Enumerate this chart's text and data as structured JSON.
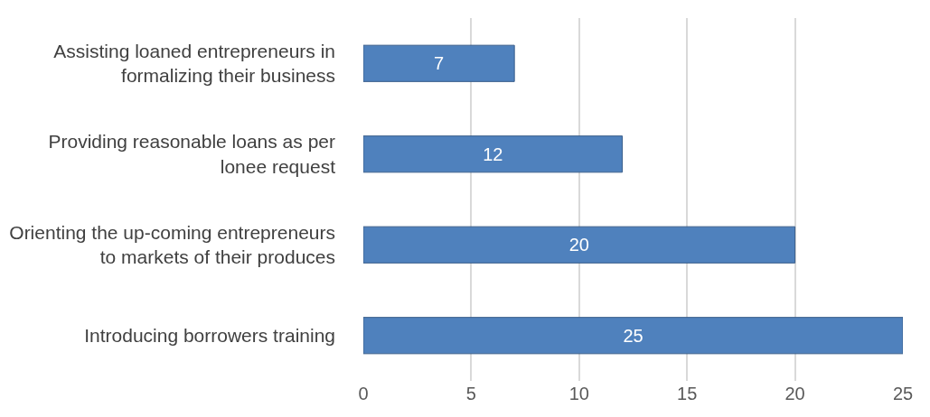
{
  "chart_data": {
    "type": "bar",
    "orientation": "horizontal",
    "categories": [
      "Assisting loaned entrepreneurs in formalizing their business",
      "Providing reasonable loans as per lonee request",
      "Orienting the up-coming entrepreneurs to markets of their produces",
      "Introducing borrowers training"
    ],
    "values": [
      7,
      12,
      20,
      25
    ],
    "color": "#4f81bd",
    "xlim": [
      0,
      25
    ],
    "xticks": [
      0,
      5,
      10,
      15,
      20,
      25
    ],
    "grid": "x",
    "data_labels": true
  }
}
